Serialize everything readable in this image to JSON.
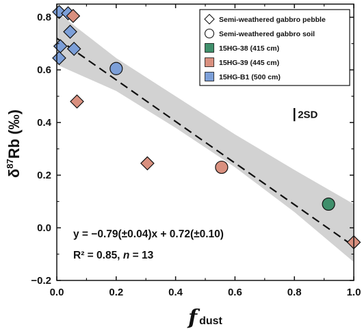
{
  "chart_data": {
    "type": "scatter",
    "xlabel_main": "f",
    "xlabel_sub": "dust",
    "ylabel_prefix": "δ",
    "ylabel_sup": "87",
    "ylabel_main": "Rb (‰)",
    "xlim": [
      0.0,
      1.0
    ],
    "ylim": [
      -0.2,
      0.85
    ],
    "x_ticks": [
      0.0,
      0.2,
      0.4,
      0.6,
      0.8,
      1.0
    ],
    "x_tick_labels": [
      "0.0",
      "0.2",
      "0.4",
      "0.6",
      "0.8",
      "1.0"
    ],
    "y_ticks": [
      -0.2,
      0.0,
      0.2,
      0.4,
      0.6,
      0.8
    ],
    "y_tick_labels": [
      "−0.2",
      "0.0",
      "0.2",
      "0.4",
      "0.6",
      "0.8"
    ],
    "grid": false,
    "legend_position": "top-right",
    "legend": [
      {
        "label": "Semi-weathered gabbro pebble",
        "marker": "diamond",
        "color": "#ffffff"
      },
      {
        "label": "Semi-weathered gabbro soil",
        "marker": "circle",
        "color": "#ffffff"
      },
      {
        "label": "15HG-38 (415 cm)",
        "marker": "square",
        "color": "#3f8f6b"
      },
      {
        "label": "15HG-39 (445 cm)",
        "marker": "square",
        "color": "#d9907f"
      },
      {
        "label": "15HG-B1 (500 cm)",
        "marker": "square",
        "color": "#7c9fd8"
      }
    ],
    "series": [
      {
        "name": "15HG-B1 (500 cm)",
        "color": "#7c9fd8",
        "marker": "diamond",
        "points": [
          [
            0.008,
            0.82
          ],
          [
            0.038,
            0.815
          ],
          [
            0.045,
            0.745
          ],
          [
            0.012,
            0.69
          ],
          [
            0.058,
            0.68
          ],
          [
            0.008,
            0.645
          ]
        ]
      },
      {
        "name": "15HG-B1 (500 cm)",
        "color": "#7c9fd8",
        "marker": "circle",
        "points": [
          [
            0.2,
            0.605
          ]
        ]
      },
      {
        "name": "15HG-39 (445 cm)",
        "color": "#d9907f",
        "marker": "diamond",
        "points": [
          [
            0.055,
            0.805
          ],
          [
            0.068,
            0.48
          ],
          [
            0.305,
            0.245
          ],
          [
            1.0,
            -0.055
          ]
        ]
      },
      {
        "name": "15HG-39 (445 cm)",
        "color": "#d9907f",
        "marker": "circle",
        "points": [
          [
            0.555,
            0.23
          ]
        ]
      },
      {
        "name": "15HG-38 (415 cm)",
        "color": "#3f8f6b",
        "marker": "circle",
        "points": [
          [
            0.915,
            0.09
          ]
        ]
      }
    ],
    "regression": {
      "slope": -0.79,
      "intercept": 0.72,
      "x_range": [
        0.0,
        1.0
      ]
    },
    "confidence_band": {
      "x": [
        0.0,
        0.2,
        0.4,
        0.6,
        0.8,
        1.0
      ],
      "upper": [
        0.82,
        0.645,
        0.5,
        0.355,
        0.22,
        0.09
      ],
      "lower": [
        0.62,
        0.52,
        0.38,
        0.23,
        0.06,
        -0.13
      ]
    },
    "error_bar_label": "2SD",
    "error_bar_center": [
      0.8,
      0.43
    ],
    "error_bar_halfwidth": 0.025,
    "equation": "y = −0.79(±0.04)x + 0.72(±0.10)",
    "r2_prefix": "R² = 0.85, ",
    "r2_n": "n",
    "r2_suffix": " = 13"
  }
}
